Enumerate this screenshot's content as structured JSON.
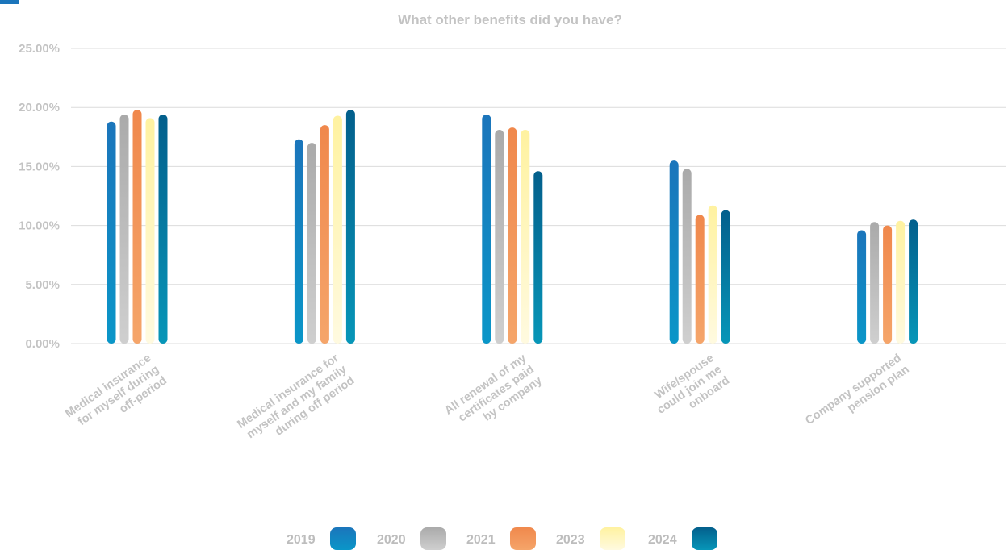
{
  "chart_data": {
    "type": "bar",
    "title": "What other benefits did you have?",
    "xlabel": "",
    "ylabel": "",
    "ylim": [
      0,
      25
    ],
    "yticks": [
      "0.00%",
      "5.00%",
      "10.00%",
      "15.00%",
      "20.00%",
      "25.00%"
    ],
    "categories": [
      [
        "Medical insurance",
        "for myself during",
        "off-period"
      ],
      [
        "Medical insurance for",
        "myself and my family",
        "during off period"
      ],
      [
        "All renewal of my",
        "certificates paid",
        "by company"
      ],
      [
        "Wife/spouse",
        "could join me",
        "onboard"
      ],
      [
        "Company supported",
        "pension plan"
      ]
    ],
    "series": [
      {
        "name": "2019",
        "color": "#1b75bb",
        "values": [
          18.8,
          17.3,
          19.4,
          15.5,
          9.6
        ]
      },
      {
        "name": "2020",
        "color": "#aaaaaa",
        "values": [
          19.4,
          17.0,
          18.1,
          14.8,
          10.3
        ]
      },
      {
        "name": "2021",
        "color": "#f0884c",
        "values": [
          19.8,
          18.5,
          18.3,
          10.9,
          10.0
        ]
      },
      {
        "name": "2023",
        "color": "#fff2a0",
        "values": [
          19.1,
          19.3,
          18.1,
          11.7,
          10.4
        ]
      },
      {
        "name": "2024",
        "color": "#035f8c",
        "values": [
          19.4,
          19.8,
          14.6,
          11.3,
          10.5
        ]
      }
    ],
    "grid": true,
    "legend_position": "bottom"
  }
}
